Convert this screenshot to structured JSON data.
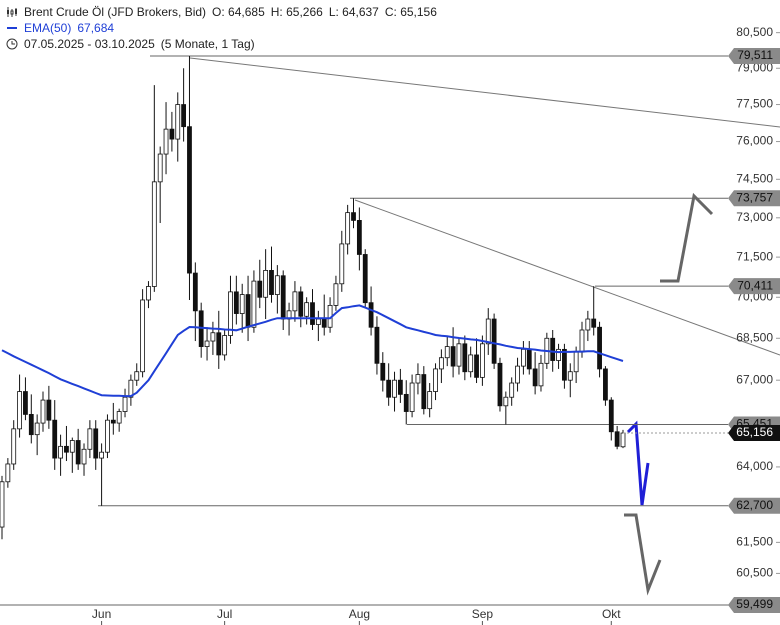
{
  "header": {
    "title": "Brent Crude Öl (JFD Brokers, Bid)",
    "ohlc": [
      "O: 64,685",
      "H: 65,266",
      "L: 64,637",
      "C: 65,156"
    ],
    "range": "07.05.2025 - 03.10.2025",
    "duration": "(5 Monate, 1 Tag)"
  },
  "chart_data": {
    "type": "candlestick",
    "log_scale": true,
    "up_color": "#ffffff",
    "down_color": "#111111",
    "categories": [
      null,
      null,
      null,
      null,
      null,
      null,
      null,
      null,
      null,
      null,
      null,
      null,
      null,
      null,
      null,
      null,
      null,
      "Jun",
      null,
      null,
      null,
      null,
      null,
      null,
      null,
      null,
      null,
      null,
      null,
      null,
      null,
      null,
      null,
      null,
      null,
      null,
      null,
      null,
      "Jul",
      null,
      null,
      null,
      null,
      null,
      null,
      null,
      null,
      null,
      null,
      null,
      null,
      null,
      null,
      null,
      null,
      null,
      null,
      null,
      null,
      null,
      null,
      "Aug",
      null,
      null,
      null,
      null,
      null,
      null,
      null,
      null,
      null,
      null,
      null,
      null,
      null,
      null,
      null,
      null,
      null,
      null,
      null,
      null,
      "Sep",
      null,
      null,
      null,
      null,
      null,
      null,
      null,
      null,
      null,
      null,
      null,
      null,
      null,
      null,
      null,
      null,
      null,
      null,
      null,
      null,
      null,
      "Okt",
      null,
      null
    ],
    "open": [
      62000,
      63500,
      64100,
      65300,
      66600,
      65800,
      65100,
      65500,
      66300,
      65600,
      64300,
      64700,
      64500,
      64900,
      64100,
      64600,
      65300,
      64300,
      64500,
      65600,
      65500,
      65900,
      66400,
      67000,
      67300,
      69900,
      70400,
      74400,
      75500,
      76500,
      76100,
      77500,
      76600,
      70900,
      69500,
      68200,
      68400,
      68700,
      67900,
      68600,
      70200,
      69400,
      70100,
      68900,
      70600,
      70000,
      71000,
      70100,
      70800,
      69200,
      69500,
      70200,
      69300,
      69800,
      69000,
      69200,
      68900,
      69700,
      70500,
      72000,
      73200,
      72900,
      71600,
      69800,
      68900,
      67600,
      67000,
      66400,
      67000,
      66500,
      65900,
      66900,
      67200,
      66000,
      66600,
      67400,
      67800,
      68200,
      67500,
      68300,
      67300,
      67900,
      67100,
      68300,
      69200,
      67600,
      66100,
      66400,
      66900,
      67500,
      68100,
      67400,
      66800,
      67600,
      68500,
      67700,
      68100,
      67000,
      67300,
      68000,
      68800,
      69200,
      68900,
      67400,
      66300,
      65200,
      64685
    ],
    "high": [
      63700,
      64300,
      65600,
      67200,
      67100,
      66500,
      65800,
      66600,
      66800,
      66300,
      65100,
      65400,
      65000,
      65300,
      64800,
      65600,
      65600,
      64800,
      65800,
      66200,
      66000,
      66700,
      67200,
      67600,
      70300,
      70600,
      78300,
      75800,
      77600,
      77200,
      78000,
      79000,
      79511,
      71300,
      69800,
      68900,
      69100,
      69500,
      68800,
      70800,
      70800,
      70500,
      70800,
      71000,
      71400,
      71800,
      71900,
      71200,
      71000,
      69800,
      70600,
      70400,
      70000,
      70300,
      69500,
      70100,
      70000,
      70800,
      72500,
      73500,
      73757,
      73400,
      71800,
      70400,
      69300,
      68000,
      67600,
      67300,
      67400,
      67000,
      67200,
      67600,
      67500,
      66900,
      67600,
      68100,
      68600,
      68900,
      68500,
      68600,
      68200,
      68500,
      68600,
      69600,
      69400,
      67800,
      66600,
      67100,
      67800,
      68400,
      68400,
      68000,
      67900,
      68700,
      68800,
      68300,
      68300,
      67600,
      68200,
      69100,
      69500,
      70411,
      69100,
      67500,
      66400,
      65400,
      65266
    ],
    "low": [
      61600,
      63300,
      63900,
      65000,
      65600,
      64800,
      64400,
      65200,
      65300,
      63900,
      63700,
      64200,
      63800,
      63900,
      63700,
      64300,
      63900,
      62700,
      64300,
      65100,
      65200,
      65700,
      66100,
      66800,
      67100,
      69600,
      70200,
      72800,
      74700,
      75600,
      75200,
      76000,
      69900,
      68400,
      67800,
      67700,
      67900,
      67400,
      67700,
      68300,
      69000,
      68700,
      68400,
      68700,
      69600,
      69200,
      69800,
      69400,
      68800,
      68600,
      69100,
      68900,
      69000,
      68800,
      68400,
      68600,
      68700,
      69500,
      70200,
      71600,
      72600,
      71000,
      69600,
      68600,
      67200,
      66600,
      66100,
      65900,
      66200,
      65451,
      65700,
      66500,
      65800,
      65700,
      66300,
      66900,
      67500,
      67100,
      67200,
      67000,
      67100,
      66900,
      66800,
      67900,
      67400,
      65900,
      65451,
      66100,
      66600,
      67200,
      67200,
      66500,
      66600,
      67400,
      67300,
      67400,
      66700,
      66400,
      66900,
      67800,
      68400,
      68600,
      67100,
      66100,
      64900,
      64600,
      64637
    ],
    "close": [
      63500,
      64100,
      65300,
      66600,
      65800,
      65100,
      65500,
      66300,
      65600,
      64300,
      64700,
      64500,
      64900,
      64100,
      64600,
      65300,
      64300,
      64500,
      65600,
      65500,
      65900,
      66400,
      67000,
      67300,
      69900,
      70400,
      74400,
      75500,
      76500,
      76100,
      77500,
      76600,
      70900,
      69500,
      68200,
      68400,
      68700,
      67900,
      68600,
      70200,
      69400,
      70100,
      68900,
      70600,
      70000,
      71000,
      70100,
      70800,
      69200,
      69500,
      70200,
      69300,
      69800,
      69000,
      69200,
      68900,
      69700,
      70500,
      72000,
      73200,
      72900,
      71600,
      69800,
      68900,
      67600,
      67000,
      66400,
      67000,
      66500,
      65900,
      66900,
      67200,
      66000,
      66600,
      67400,
      67800,
      68200,
      67500,
      68300,
      67300,
      67900,
      67100,
      68300,
      69200,
      67600,
      66100,
      66400,
      66900,
      67500,
      68100,
      67400,
      66800,
      67600,
      68500,
      67700,
      68100,
      67000,
      67300,
      68000,
      68800,
      69200,
      68900,
      67400,
      66300,
      65200,
      64700,
      65156
    ],
    "series": [
      {
        "name": "EMA(50)",
        "color": "#1f3fd6",
        "last_label": "67,684",
        "values": [
          68070,
          67960,
          67850,
          67750,
          67650,
          67550,
          67450,
          67350,
          67250,
          67140,
          67030,
          66950,
          66870,
          66790,
          66710,
          66630,
          66550,
          66470,
          66460,
          66450,
          66450,
          66440,
          66440,
          66560,
          66780,
          67000,
          67320,
          67640,
          67960,
          68290,
          68620,
          68770,
          68910,
          68900,
          68880,
          68870,
          68850,
          68840,
          68820,
          68810,
          68790,
          68850,
          68920,
          68980,
          69040,
          69100,
          69170,
          69230,
          69230,
          69230,
          69230,
          69230,
          69230,
          69230,
          69230,
          69230,
          69230,
          69420,
          69600,
          69630,
          69670,
          69700,
          69620,
          69530,
          69450,
          69340,
          69230,
          69120,
          69010,
          68900,
          68840,
          68790,
          68730,
          68680,
          68620,
          68590,
          68570,
          68540,
          68510,
          68490,
          68460,
          68440,
          68400,
          68360,
          68320,
          68280,
          68230,
          68190,
          68150,
          68130,
          68110,
          68090,
          68060,
          68040,
          68020,
          68000,
          68010,
          68010,
          68020,
          68020,
          68030,
          68030,
          67960,
          67890,
          67820,
          67750,
          67684
        ]
      }
    ],
    "ylim": [
      59499,
      81900
    ],
    "yticks": [
      {
        "value": 80500,
        "label": "80,500"
      },
      {
        "value": 79000,
        "label": "79,000"
      },
      {
        "value": 77500,
        "label": "77,500"
      },
      {
        "value": 76000,
        "label": "76,000"
      },
      {
        "value": 74500,
        "label": "74,500"
      },
      {
        "value": 73000,
        "label": "73,000"
      },
      {
        "value": 71500,
        "label": "71,500"
      },
      {
        "value": 70000,
        "label": "70,000"
      },
      {
        "value": 68500,
        "label": "68,500"
      },
      {
        "value": 67000,
        "label": "67,000"
      },
      {
        "value": 64000,
        "label": "64,000"
      },
      {
        "value": 61500,
        "label": "61,500"
      },
      {
        "value": 60500,
        "label": "60,500"
      }
    ],
    "levels": [
      {
        "value": 79511,
        "label": "79,511"
      },
      {
        "value": 73757,
        "label": "73,757"
      },
      {
        "value": 70411,
        "label": "70,411"
      },
      {
        "value": 65451,
        "label": "65,451"
      },
      {
        "value": 62700,
        "label": "62,700"
      },
      {
        "value": 59499,
        "label": "59,499"
      }
    ],
    "price_marker": {
      "value": 65156,
      "label": "65,156"
    }
  }
}
